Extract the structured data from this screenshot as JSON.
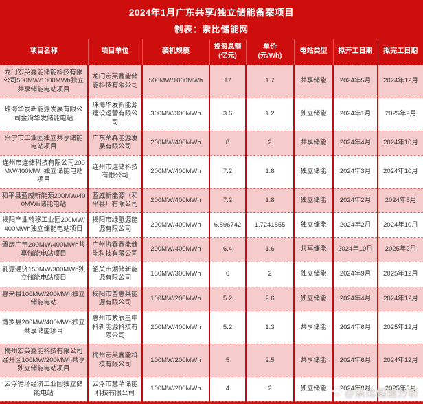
{
  "header": {
    "title": "2024年1月广东共享/独立储能备案项目",
    "subtitle": "制表：索比储能网"
  },
  "chart_data": {
    "type": "table",
    "title": "2024年1月广东共享/独立储能备案项目",
    "columns": [
      {
        "id": "name",
        "label": "项目名称"
      },
      {
        "id": "unit",
        "label": "项目单位"
      },
      {
        "id": "scale",
        "label": "装机规模"
      },
      {
        "id": "investment",
        "label": "投资总额",
        "sub": "(亿元)"
      },
      {
        "id": "price",
        "label": "单价",
        "sub": "(元/Wh)"
      },
      {
        "id": "type",
        "label": "电站类型"
      },
      {
        "id": "start",
        "label": "拟开工日期"
      },
      {
        "id": "end",
        "label": "拟完工日期"
      }
    ],
    "rows": [
      {
        "name": "龙门宏英鑫能储能科技有限公司500MW/1000MWh独立共享储能电站项目",
        "unit": "龙门宏英鑫能储能科技有限公司",
        "scale": "500MW/1000MWh",
        "investment": "17",
        "price": "1.7",
        "type": "共享储能",
        "start": "2024年5月",
        "end": "2024年12月"
      },
      {
        "name": "珠海华发新能源发展有限公司金湾华发储能电站",
        "unit": "珠海华发新能源建设运营有限公司",
        "scale": "300MW/300MWh",
        "investment": "3.6",
        "price": "1.2",
        "type": "独立储能",
        "start": "2024年1月",
        "end": "2025年9月"
      },
      {
        "name": "兴宁市工业园独立共享储能电站项目",
        "unit": "广东荣森能源发展有限公司",
        "scale": "200MW/400MWh",
        "investment": "8",
        "price": "2",
        "type": "共享储能",
        "start": "2024年4月",
        "end": "2024年10月"
      },
      {
        "name": "连州市连储科技有限公司200MW/400MWh独立储能电站项目",
        "unit": "连州市连储科技有限公司",
        "scale": "200MW/400MWh",
        "investment": "7.2",
        "price": "1.8",
        "type": "独立储能",
        "start": "2024年3月",
        "end": "2024年10月"
      },
      {
        "name": "和平县蓝威新能源200MW/400MWh储能电站",
        "unit": "蓝威新能源（和平县）有限公司",
        "scale": "200MW/400MWh",
        "investment": "7.2",
        "price": "1.8",
        "type": "独立储能",
        "start": "2024年2月",
        "end": "2024年5月"
      },
      {
        "name": "揭阳产业转移工业园200MW/400MWh独立储能电站项目",
        "unit": "揭阳市绿氢源能源有限公司",
        "scale": "200MW/400MWh",
        "investment": "6.896742",
        "price": "1.7241855",
        "type": "独立储能",
        "start": "2024年2月",
        "end": "2024年10月"
      },
      {
        "name": "肇庆广宁200MW/400MWh共享储能电站项目",
        "unit": "广州协鑫鑫能储能科技有限公司",
        "scale": "200MW/400MWh",
        "investment": "6.4",
        "price": "1.6",
        "type": "共享储能",
        "start": "2024年10月",
        "end": "2025年2月"
      },
      {
        "name": "乳源通济150MW/300MWh独立储能电站项目",
        "unit": "韶关市湘储新能源有限公司",
        "scale": "150MW/300MWh",
        "investment": "6",
        "price": "2",
        "type": "独立储能",
        "start": "2024年9月",
        "end": "2025年12月"
      },
      {
        "name": "惠来县100MW/200MWh独立储能电站",
        "unit": "揭阳市普惠莱能源有限公司",
        "scale": "100MW/200MWh",
        "investment": "5.2",
        "price": "2.6",
        "type": "独立储能",
        "start": "2024年4月",
        "end": "2024年12月"
      },
      {
        "name": "博罗县200MW/400MWh独立共享储能项目",
        "unit": "惠州市紫辰星中科新能源科技有限公司",
        "scale": "200MW/400MWh",
        "investment": "5.2",
        "price": "1.3",
        "type": "共享储能",
        "start": "2024年6月",
        "end": "2025年12月"
      },
      {
        "name": "梅州宏英鑫能科技有限公司经开区100MW/200MWh共享独立储能电站项目",
        "unit": "梅州宏英鑫能科技有限公司",
        "scale": "100MW/200MWh",
        "investment": "5",
        "price": "2.5",
        "type": "共享储能",
        "start": "2024年6月",
        "end": "2024年12月"
      },
      {
        "name": "云浮循环经济工业园独立储能电站",
        "unit": "云浮市慧芊储能科技有限公司",
        "scale": "100MW/200MWh",
        "investment": "4",
        "price": "2",
        "type": "独立储能",
        "start": "2024年8月",
        "end": "2025年3月"
      }
    ]
  },
  "watermark": {
    "text": "@索比储能分析"
  },
  "colors": {
    "banner_red": "#ce0d0d",
    "grid_red": "#c40b0b",
    "row_pink": "#f6cbcb",
    "row_white": "#ffffff",
    "dash_red": "#e06a6a",
    "header_text": "#ffffff",
    "body_text": "#3a3a3a"
  }
}
